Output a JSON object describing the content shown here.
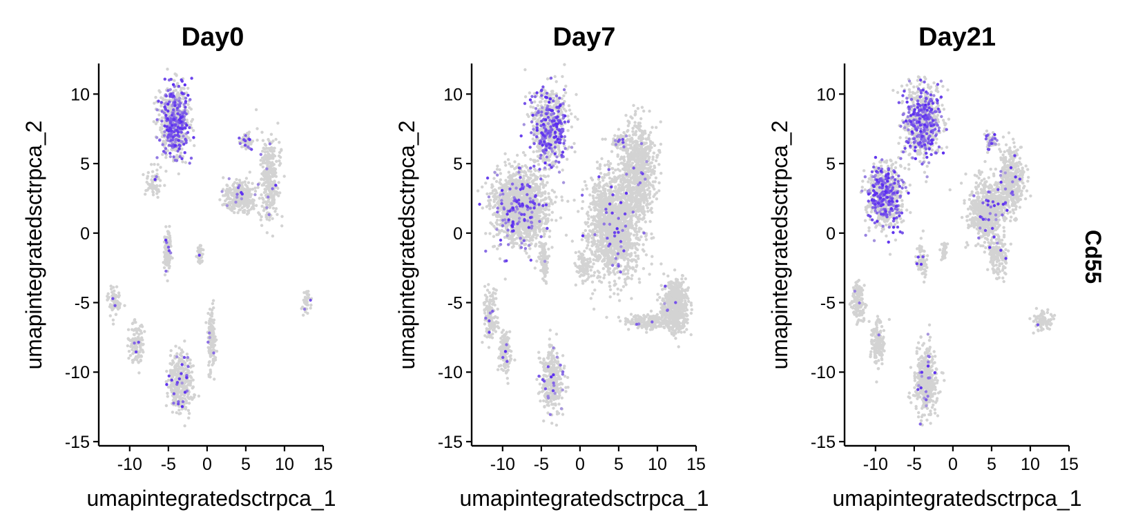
{
  "chart_data": {
    "type": "scatter",
    "gene": "Cd55",
    "xlabel": "umapintegratedsctrpca_1",
    "ylabel": "umapintegratedsctrpca_2",
    "xlim": [
      -14,
      15
    ],
    "ylim": [
      -15.3,
      12.2
    ],
    "xticks": [
      -10,
      -5,
      0,
      5,
      10,
      15
    ],
    "yticks": [
      -15,
      -10,
      -5,
      0,
      5,
      10
    ],
    "xtick_labels": [
      "-10",
      "-5",
      "0",
      "5",
      "10",
      "15"
    ],
    "ytick_labels": [
      "-15",
      "-10",
      "-5",
      "0",
      "5",
      "10"
    ],
    "grid": false,
    "colors": {
      "low": "#d3d3d3",
      "high": "#5a2cf0"
    },
    "panels": [
      {
        "title": "Day0",
        "clusters": [
          {
            "cx": -4.3,
            "cy": 8.0,
            "rx": 1.9,
            "ry": 2.6,
            "n": 700,
            "expr": 0.35
          },
          {
            "cx": -6.8,
            "cy": 3.6,
            "rx": 1.0,
            "ry": 1.0,
            "n": 60,
            "expr": 0.05
          },
          {
            "cx": -5.1,
            "cy": -1.1,
            "rx": 0.5,
            "ry": 1.5,
            "n": 120,
            "expr": 0.05
          },
          {
            "cx": -1.0,
            "cy": -1.5,
            "rx": 0.5,
            "ry": 0.7,
            "n": 40,
            "expr": 0.05
          },
          {
            "cx": 4.2,
            "cy": 2.6,
            "rx": 2.2,
            "ry": 1.1,
            "n": 300,
            "expr": 0.04
          },
          {
            "cx": 5.0,
            "cy": 6.6,
            "rx": 0.8,
            "ry": 0.6,
            "n": 70,
            "expr": 0.2
          },
          {
            "cx": 8.1,
            "cy": 3.8,
            "rx": 1.2,
            "ry": 3.3,
            "n": 320,
            "expr": 0.03
          },
          {
            "cx": -12.0,
            "cy": -5.0,
            "rx": 0.8,
            "ry": 1.0,
            "n": 80,
            "expr": 0.02
          },
          {
            "cx": -9.1,
            "cy": -8.0,
            "rx": 1.0,
            "ry": 1.5,
            "n": 110,
            "expr": 0.02
          },
          {
            "cx": -3.5,
            "cy": -10.8,
            "rx": 1.5,
            "ry": 2.2,
            "n": 360,
            "expr": 0.08
          },
          {
            "cx": 0.6,
            "cy": -7.8,
            "rx": 0.5,
            "ry": 2.5,
            "n": 130,
            "expr": 0.02
          },
          {
            "cx": 12.8,
            "cy": -4.9,
            "rx": 0.6,
            "ry": 0.9,
            "n": 40,
            "expr": 0.03
          }
        ]
      },
      {
        "title": "Day7",
        "clusters": [
          {
            "cx": -4.0,
            "cy": 7.6,
            "rx": 2.4,
            "ry": 2.9,
            "n": 700,
            "expr": 0.3
          },
          {
            "cx": -7.6,
            "cy": 1.8,
            "rx": 3.4,
            "ry": 2.6,
            "n": 1500,
            "expr": 0.07
          },
          {
            "cx": -4.6,
            "cy": -2.0,
            "rx": 0.5,
            "ry": 1.5,
            "n": 100,
            "expr": 0.03
          },
          {
            "cx": 4.5,
            "cy": 0.6,
            "rx": 3.5,
            "ry": 3.7,
            "n": 1500,
            "expr": 0.02
          },
          {
            "cx": 7.5,
            "cy": 4.6,
            "rx": 2.2,
            "ry": 3.3,
            "n": 700,
            "expr": 0.02
          },
          {
            "cx": 5.0,
            "cy": 6.6,
            "rx": 0.8,
            "ry": 0.6,
            "n": 60,
            "expr": 0.2
          },
          {
            "cx": 12.3,
            "cy": -5.2,
            "rx": 1.6,
            "ry": 1.8,
            "n": 600,
            "expr": 0.01
          },
          {
            "cx": 8.7,
            "cy": -6.4,
            "rx": 2.8,
            "ry": 0.5,
            "n": 200,
            "expr": 0.01
          },
          {
            "cx": -11.6,
            "cy": -5.8,
            "rx": 0.8,
            "ry": 1.8,
            "n": 160,
            "expr": 0.02
          },
          {
            "cx": -9.7,
            "cy": -8.5,
            "rx": 0.8,
            "ry": 1.7,
            "n": 140,
            "expr": 0.02
          },
          {
            "cx": -3.6,
            "cy": -10.6,
            "rx": 1.3,
            "ry": 2.2,
            "n": 360,
            "expr": 0.06
          },
          {
            "cx": 0.5,
            "cy": -2.5,
            "rx": 1.0,
            "ry": 1.2,
            "n": 70,
            "expr": 0.02
          }
        ]
      },
      {
        "title": "Day21",
        "clusters": [
          {
            "cx": -4.0,
            "cy": 8.0,
            "rx": 2.4,
            "ry": 2.6,
            "n": 700,
            "expr": 0.35
          },
          {
            "cx": -8.7,
            "cy": 2.6,
            "rx": 2.2,
            "ry": 2.4,
            "n": 700,
            "expr": 0.3
          },
          {
            "cx": -4.0,
            "cy": -1.8,
            "rx": 0.6,
            "ry": 1.3,
            "n": 80,
            "expr": 0.04
          },
          {
            "cx": 4.5,
            "cy": 1.6,
            "rx": 2.4,
            "ry": 2.2,
            "n": 700,
            "expr": 0.04
          },
          {
            "cx": 7.6,
            "cy": 3.8,
            "rx": 1.6,
            "ry": 2.3,
            "n": 400,
            "expr": 0.03
          },
          {
            "cx": 5.8,
            "cy": -1.6,
            "rx": 1.2,
            "ry": 1.5,
            "n": 150,
            "expr": 0.03
          },
          {
            "cx": 5.0,
            "cy": 6.6,
            "rx": 0.8,
            "ry": 0.6,
            "n": 60,
            "expr": 0.2
          },
          {
            "cx": -12.2,
            "cy": -5.0,
            "rx": 0.8,
            "ry": 1.3,
            "n": 140,
            "expr": 0.02
          },
          {
            "cx": -9.7,
            "cy": -7.8,
            "rx": 0.9,
            "ry": 1.7,
            "n": 160,
            "expr": 0.02
          },
          {
            "cx": -3.5,
            "cy": -10.7,
            "rx": 1.4,
            "ry": 2.3,
            "n": 420,
            "expr": 0.06
          },
          {
            "cx": -1.1,
            "cy": -1.3,
            "rx": 0.5,
            "ry": 0.7,
            "n": 40,
            "expr": 0.04
          },
          {
            "cx": 11.6,
            "cy": -6.2,
            "rx": 1.2,
            "ry": 0.7,
            "n": 90,
            "expr": 0.02
          }
        ]
      }
    ]
  }
}
